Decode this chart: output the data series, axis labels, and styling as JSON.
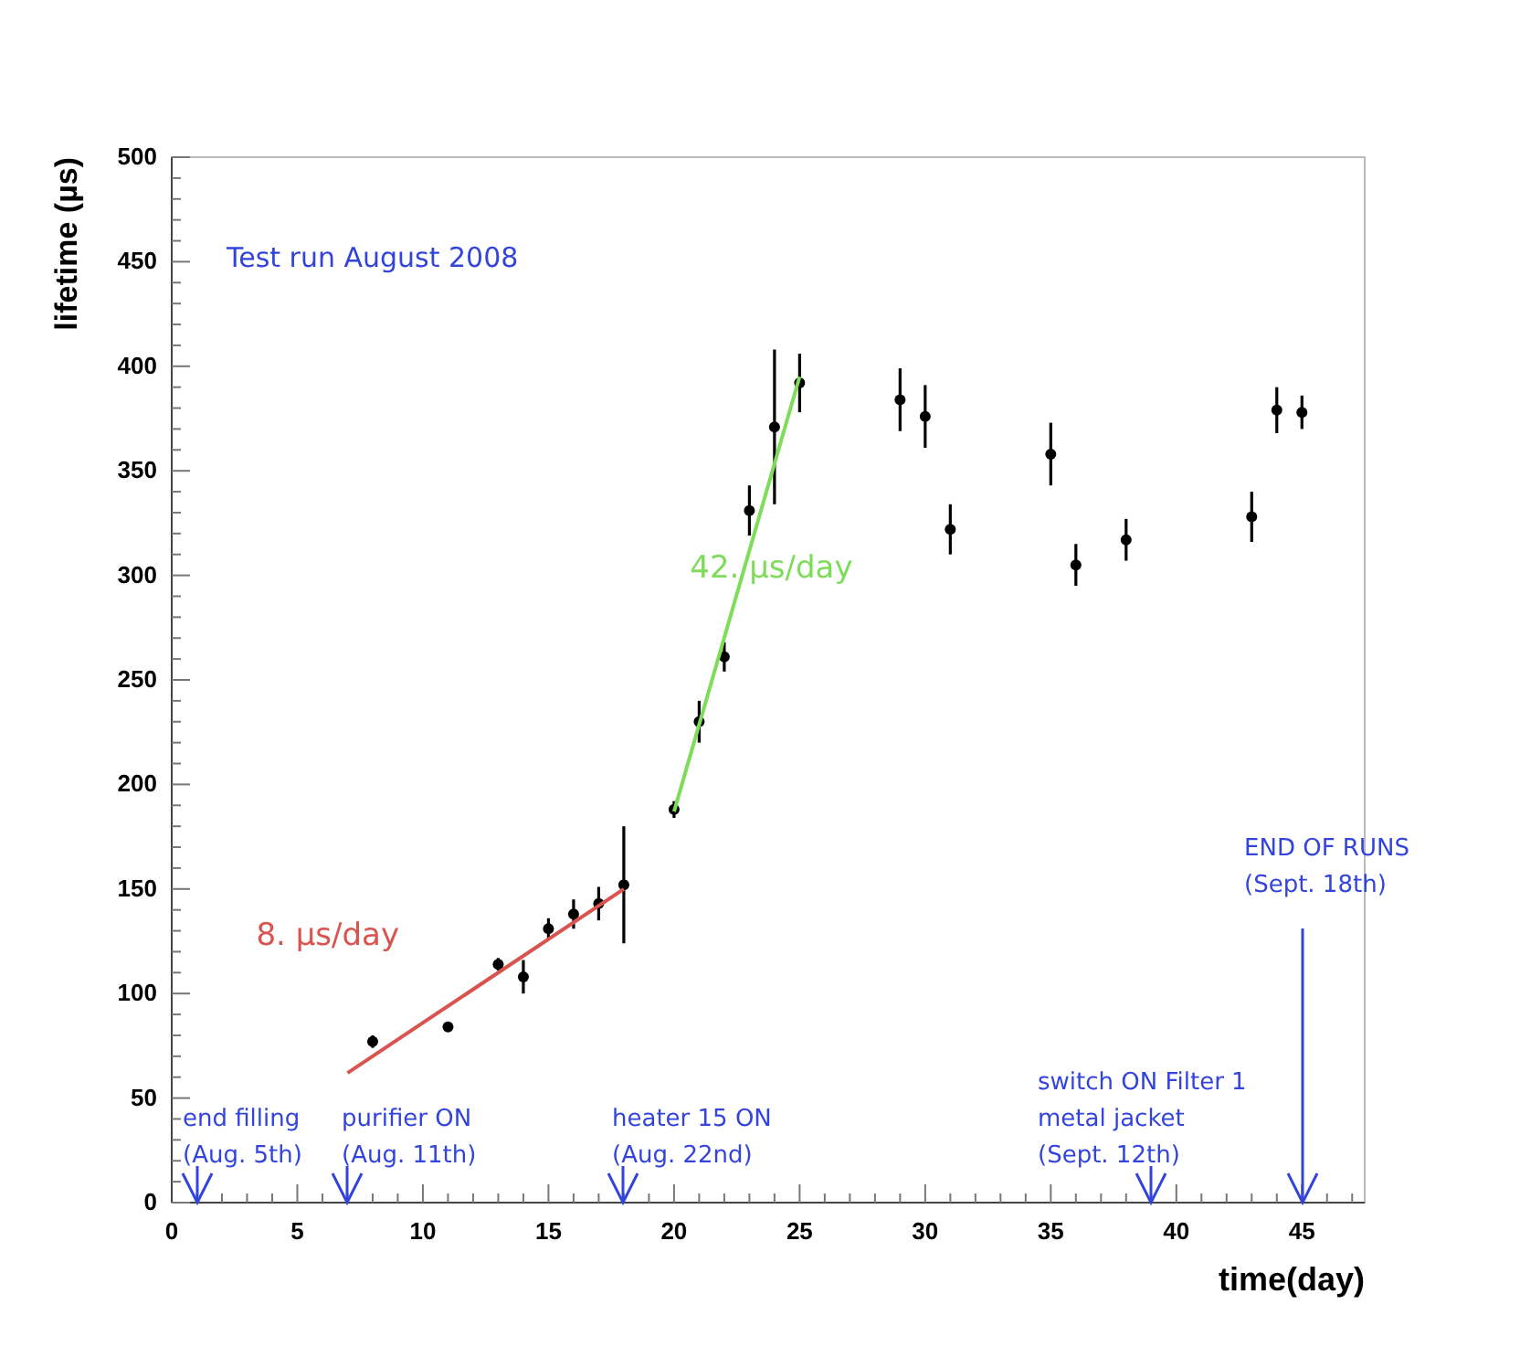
{
  "chart_data": {
    "type": "scatter",
    "xlabel": "time(day)",
    "ylabel": "lifetime (µs)",
    "xlim": [
      0,
      47.5
    ],
    "ylim": [
      0,
      500
    ],
    "xticks": [
      0,
      {
        "value": 1,
        "label": null
      },
      {
        "value": 2,
        "label": null
      },
      {
        "value": 3,
        "label": null
      },
      {
        "value": 4,
        "label": null
      },
      5,
      {
        "value": 6,
        "label": null
      },
      {
        "value": 7,
        "label": null
      },
      {
        "value": 8,
        "label": null
      },
      {
        "value": 9,
        "label": null
      },
      10,
      {
        "value": 11,
        "label": null
      },
      {
        "value": 12,
        "label": null
      },
      {
        "value": 13,
        "label": null
      },
      {
        "value": 14,
        "label": null
      },
      15,
      {
        "value": 16,
        "label": null
      },
      {
        "value": 17,
        "label": null
      },
      {
        "value": 18,
        "label": null
      },
      {
        "value": 19,
        "label": null
      },
      20,
      {
        "value": 21,
        "label": null
      },
      {
        "value": 22,
        "label": null
      },
      {
        "value": 23,
        "label": null
      },
      {
        "value": 24,
        "label": null
      },
      25,
      {
        "value": 26,
        "label": null
      },
      {
        "value": 27,
        "label": null
      },
      {
        "value": 28,
        "label": null
      },
      {
        "value": 29,
        "label": null
      },
      30,
      {
        "value": 31,
        "label": null
      },
      {
        "value": 32,
        "label": null
      },
      {
        "value": 33,
        "label": null
      },
      {
        "value": 34,
        "label": null
      },
      35,
      {
        "value": 36,
        "label": null
      },
      {
        "value": 37,
        "label": null
      },
      {
        "value": 38,
        "label": null
      },
      {
        "value": 39,
        "label": null
      },
      40,
      {
        "value": 41,
        "label": null
      },
      {
        "value": 42,
        "label": null
      },
      {
        "value": 43,
        "label": null
      },
      {
        "value": 44,
        "label": null
      },
      45,
      {
        "value": 46,
        "label": null
      },
      {
        "value": 47,
        "label": null
      }
    ],
    "yticks": [
      0,
      {
        "value": 10,
        "label": null
      },
      {
        "value": 20,
        "label": null
      },
      {
        "value": 30,
        "label": null
      },
      {
        "value": 40,
        "label": null
      },
      50,
      {
        "value": 60,
        "label": null
      },
      {
        "value": 70,
        "label": null
      },
      {
        "value": 80,
        "label": null
      },
      {
        "value": 90,
        "label": null
      },
      100,
      {
        "value": 110,
        "label": null
      },
      {
        "value": 120,
        "label": null
      },
      {
        "value": 130,
        "label": null
      },
      {
        "value": 140,
        "label": null
      },
      150,
      {
        "value": 160,
        "label": null
      },
      {
        "value": 170,
        "label": null
      },
      {
        "value": 180,
        "label": null
      },
      {
        "value": 190,
        "label": null
      },
      200,
      {
        "value": 210,
        "label": null
      },
      {
        "value": 220,
        "label": null
      },
      {
        "value": 230,
        "label": null
      },
      {
        "value": 240,
        "label": null
      },
      250,
      {
        "value": 260,
        "label": null
      },
      {
        "value": 270,
        "label": null
      },
      {
        "value": 280,
        "label": null
      },
      {
        "value": 290,
        "label": null
      },
      300,
      {
        "value": 310,
        "label": null
      },
      {
        "value": 320,
        "label": null
      },
      {
        "value": 330,
        "label": null
      },
      {
        "value": 340,
        "label": null
      },
      350,
      {
        "value": 360,
        "label": null
      },
      {
        "value": 370,
        "label": null
      },
      {
        "value": 380,
        "label": null
      },
      {
        "value": 390,
        "label": null
      },
      400,
      {
        "value": 410,
        "label": null
      },
      {
        "value": 420,
        "label": null
      },
      {
        "value": 430,
        "label": null
      },
      {
        "value": 440,
        "label": null
      },
      450,
      {
        "value": 460,
        "label": null
      },
      {
        "value": 470,
        "label": null
      },
      {
        "value": 480,
        "label": null
      },
      {
        "value": 490,
        "label": null
      },
      500
    ],
    "grid": false,
    "series": [
      {
        "marker": "circle",
        "color": "#000000",
        "x": [
          8,
          11,
          13,
          14,
          15,
          16,
          17,
          18,
          20,
          21,
          22,
          23,
          24,
          25,
          29,
          30,
          31,
          35,
          36,
          38,
          43,
          44,
          45
        ],
        "values": [
          77,
          84,
          114,
          108,
          131,
          138,
          143,
          152,
          188,
          230,
          261,
          331,
          371,
          392,
          384,
          376,
          322,
          358,
          305,
          317,
          328,
          379,
          378
        ],
        "errors": [
          3,
          2,
          3,
          8,
          5,
          7,
          8,
          28,
          4,
          10,
          7,
          12,
          37,
          14,
          15,
          15,
          12,
          15,
          10,
          10,
          12,
          11,
          8
        ]
      },
      {
        "type": "line",
        "name": "8. µs/day",
        "color": "#d9534f",
        "x": [
          7,
          18
        ],
        "values": [
          62,
          150
        ],
        "line_style": "solid",
        "marker": "none"
      },
      {
        "type": "line",
        "name": "42. µs/day",
        "color": "#7fdc5a",
        "x": [
          20,
          25
        ],
        "values": [
          187,
          395
        ],
        "line_style": "solid",
        "marker": "none"
      }
    ],
    "annotations": [
      "Test run August 2008",
      "end filling\n(Aug. 5th)",
      "purifier ON\n(Aug. 11th)",
      "heater 15 ON\n(Aug. 22nd)",
      "switch ON Filter 1\nmetal jacket\n(Sept. 12th)",
      "END OF RUNS\n(Sept. 18th)"
    ]
  }
}
